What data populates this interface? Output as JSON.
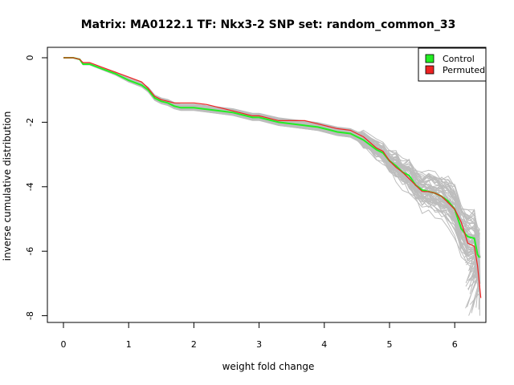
{
  "chart_data": {
    "type": "line",
    "title": "Matrix: MA0122.1 TF: Nkx3-2 SNP set: random_common_33",
    "xlabel": "weight fold change",
    "ylabel": "inverse cumulative distribution",
    "xlim": [
      0,
      6.5
    ],
    "ylim": [
      -8,
      0
    ],
    "x_ticks": [
      0,
      1,
      2,
      3,
      4,
      5,
      6
    ],
    "y_ticks": [
      0,
      -2,
      -4,
      -6,
      -8
    ],
    "grid": false,
    "legend": {
      "position": "top-right",
      "entries": [
        {
          "label": "Control",
          "color": "#22ee22"
        },
        {
          "label": "Permuted",
          "color": "#ee2222"
        }
      ]
    },
    "colors": {
      "background_lines": "#bdbdbd"
    },
    "series": [
      {
        "name": "Control",
        "color": "#22ee22",
        "x": [
          0,
          0.15,
          0.25,
          0.3,
          0.4,
          0.6,
          0.8,
          1.0,
          1.2,
          1.3,
          1.4,
          1.5,
          1.6,
          1.7,
          1.8,
          2.0,
          2.2,
          2.4,
          2.6,
          2.8,
          2.9,
          3.0,
          3.2,
          3.3,
          3.5,
          3.7,
          3.9,
          4.0,
          4.1,
          4.2,
          4.4,
          4.5,
          4.6,
          4.8,
          4.9,
          5.0,
          5.1,
          5.2,
          5.3,
          5.4,
          5.5,
          5.6,
          5.7,
          5.8,
          5.9,
          6.0,
          6.1,
          6.2,
          6.3,
          6.35,
          6.38
        ],
        "y": [
          0,
          0,
          -0.05,
          -0.2,
          -0.2,
          -0.35,
          -0.5,
          -0.7,
          -0.85,
          -1.0,
          -1.25,
          -1.35,
          -1.4,
          -1.5,
          -1.55,
          -1.55,
          -1.6,
          -1.65,
          -1.7,
          -1.8,
          -1.85,
          -1.85,
          -1.95,
          -2.0,
          -2.05,
          -2.1,
          -2.15,
          -2.2,
          -2.25,
          -2.3,
          -2.35,
          -2.45,
          -2.55,
          -2.85,
          -2.95,
          -3.2,
          -3.35,
          -3.55,
          -3.65,
          -3.95,
          -4.1,
          -4.15,
          -4.2,
          -4.3,
          -4.45,
          -4.7,
          -5.3,
          -5.55,
          -5.6,
          -6.1,
          -6.2
        ]
      },
      {
        "name": "Permuted",
        "color": "#ee2222",
        "x": [
          0,
          0.15,
          0.25,
          0.3,
          0.4,
          0.6,
          0.8,
          1.0,
          1.2,
          1.3,
          1.4,
          1.5,
          1.6,
          1.7,
          1.8,
          2.0,
          2.2,
          2.4,
          2.6,
          2.8,
          2.9,
          3.0,
          3.2,
          3.3,
          3.5,
          3.7,
          3.8,
          3.9,
          4.0,
          4.1,
          4.2,
          4.4,
          4.5,
          4.6,
          4.8,
          4.9,
          5.0,
          5.1,
          5.2,
          5.3,
          5.4,
          5.5,
          5.6,
          5.7,
          5.8,
          5.9,
          6.0,
          6.1,
          6.2,
          6.3,
          6.35,
          6.4
        ],
        "y": [
          0,
          0,
          -0.05,
          -0.15,
          -0.15,
          -0.3,
          -0.45,
          -0.6,
          -0.75,
          -0.95,
          -1.2,
          -1.3,
          -1.35,
          -1.4,
          -1.4,
          -1.4,
          -1.45,
          -1.55,
          -1.65,
          -1.75,
          -1.8,
          -1.8,
          -1.9,
          -1.95,
          -1.95,
          -1.95,
          -2.0,
          -2.05,
          -2.1,
          -2.15,
          -2.2,
          -2.25,
          -2.35,
          -2.45,
          -2.8,
          -2.9,
          -3.2,
          -3.4,
          -3.55,
          -3.75,
          -3.95,
          -4.15,
          -4.15,
          -4.2,
          -4.3,
          -4.5,
          -4.7,
          -5.1,
          -5.75,
          -5.85,
          -6.45,
          -7.45
        ]
      }
    ]
  }
}
